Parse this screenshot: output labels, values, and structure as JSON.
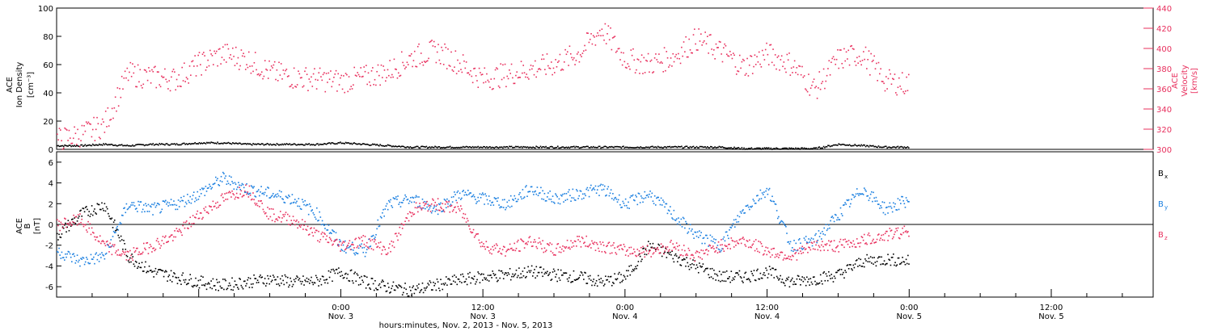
{
  "chart_data": [
    {
      "type": "scatter",
      "panel": "top",
      "ylabel_left": [
        "ACE",
        "Ion Density",
        "[cm⁻³]"
      ],
      "ylabel_right": [
        "ACE",
        "Velocity",
        "[km/s]"
      ],
      "ylim_left": [
        0,
        100
      ],
      "ylim_right": [
        300,
        440
      ],
      "yticks_left": [
        "0",
        "20",
        "40",
        "60",
        "80",
        "100"
      ],
      "yticks_right": [
        "300",
        "320",
        "340",
        "360",
        "380",
        "400",
        "420",
        "440"
      ],
      "x_hours_range": [
        0,
        72
      ],
      "series": [
        {
          "name": "Ion Density",
          "axis": "left",
          "color": "#000000",
          "x": [
            0,
            2,
            4,
            6,
            8,
            10,
            12,
            14,
            16,
            18,
            20,
            22,
            24,
            26,
            28,
            30,
            32,
            34,
            36,
            38,
            40,
            42,
            44,
            46,
            48,
            50,
            52,
            54,
            56,
            58,
            60,
            62,
            64,
            66,
            68,
            70,
            72
          ],
          "y": [
            3,
            3,
            4,
            3,
            4,
            4,
            5,
            5,
            4,
            4,
            4,
            4,
            5,
            4,
            3,
            2,
            2,
            2,
            2,
            2,
            2,
            2,
            2,
            2,
            2,
            2,
            2,
            2,
            2,
            1,
            1,
            1,
            1,
            4,
            3,
            2,
            2
          ]
        },
        {
          "name": "Velocity",
          "axis": "right",
          "color": "#e8305e",
          "x": [
            0,
            2,
            4,
            6,
            8,
            10,
            12,
            14,
            16,
            18,
            20,
            22,
            24,
            26,
            28,
            30,
            32,
            34,
            36,
            38,
            40,
            42,
            44,
            46,
            48,
            50,
            52,
            54,
            56,
            58,
            60,
            62,
            64,
            66,
            68,
            70,
            72
          ],
          "y": [
            310,
            315,
            325,
            375,
            372,
            370,
            385,
            395,
            390,
            377,
            372,
            370,
            368,
            372,
            378,
            392,
            398,
            386,
            370,
            375,
            380,
            385,
            395,
            420,
            390,
            385,
            392,
            410,
            398,
            382,
            395,
            385,
            360,
            390,
            395,
            368,
            365
          ]
        }
      ]
    },
    {
      "type": "scatter",
      "panel": "bottom",
      "ylabel_left": [
        "ACE",
        "B",
        "[nT]"
      ],
      "ylim": [
        -7,
        7
      ],
      "yticks": [
        "-6",
        "-4",
        "-2",
        "0",
        "2",
        "4",
        "6"
      ],
      "x_hours_range": [
        0,
        72
      ],
      "x_tick_labels": [
        {
          "time": "0:00",
          "date": "Nov. 3",
          "hour": 24
        },
        {
          "time": "12:00",
          "date": "Nov. 3",
          "hour": 36
        },
        {
          "time": "0:00",
          "date": "Nov. 4",
          "hour": 48
        },
        {
          "time": "12:00",
          "date": "Nov. 4",
          "hour": 60
        },
        {
          "time": "0:00",
          "date": "Nov. 5",
          "hour": 72
        },
        {
          "time": "12:00",
          "date": "Nov. 5",
          "hour": 84
        }
      ],
      "xlabel": "hours:minutes, Nov.  2, 2013 - Nov.  5, 2013",
      "legend": [
        {
          "label": "B",
          "sub": "x",
          "color": "#000000"
        },
        {
          "label": "B",
          "sub": "y",
          "color": "#1a7fe0"
        },
        {
          "label": "B",
          "sub": "z",
          "color": "#e8305e"
        }
      ],
      "series": [
        {
          "name": "Bx",
          "color": "#000000",
          "x": [
            0,
            2,
            4,
            6,
            8,
            10,
            12,
            14,
            16,
            18,
            20,
            22,
            24,
            26,
            28,
            30,
            32,
            34,
            36,
            38,
            40,
            42,
            44,
            46,
            48,
            50,
            52,
            54,
            56,
            58,
            60,
            62,
            64,
            66,
            68,
            70,
            72
          ],
          "y": [
            -1,
            1,
            2,
            -3,
            -4.5,
            -5,
            -5.5,
            -5.8,
            -5.5,
            -5.2,
            -5.5,
            -5.4,
            -4.5,
            -5.5,
            -6,
            -6.3,
            -5.8,
            -5.3,
            -5,
            -4.8,
            -4.5,
            -4.8,
            -5,
            -5.5,
            -5,
            -2,
            -3,
            -4,
            -5,
            -5,
            -4.5,
            -5.5,
            -5.2,
            -4.8,
            -3.5,
            -3.3,
            -3.5
          ]
        },
        {
          "name": "By",
          "color": "#1a7fe0",
          "x": [
            0,
            2,
            4,
            6,
            8,
            10,
            12,
            14,
            16,
            18,
            20,
            22,
            24,
            26,
            28,
            30,
            32,
            34,
            36,
            38,
            40,
            42,
            44,
            46,
            48,
            50,
            52,
            54,
            56,
            58,
            60,
            62,
            64,
            66,
            68,
            70,
            72
          ],
          "y": [
            -2.5,
            -3.5,
            -3,
            2,
            1.5,
            2,
            3,
            4.5,
            3.5,
            3,
            2.5,
            1,
            -2,
            -2.5,
            2,
            2.5,
            1.5,
            3,
            2.5,
            2,
            3.5,
            2.5,
            3,
            3.5,
            2,
            3,
            1,
            -1,
            -2,
            1.5,
            3.5,
            -2,
            -1.5,
            1,
            3.5,
            1.5,
            2.5
          ]
        },
        {
          "name": "Bz",
          "color": "#e8305e",
          "x": [
            0,
            2,
            4,
            6,
            8,
            10,
            12,
            14,
            16,
            18,
            20,
            22,
            24,
            26,
            28,
            30,
            32,
            34,
            36,
            38,
            40,
            42,
            44,
            46,
            48,
            50,
            52,
            54,
            56,
            58,
            60,
            62,
            64,
            66,
            68,
            70,
            72
          ],
          "y": [
            0,
            0.5,
            -2,
            -3,
            -2,
            -1,
            1,
            2.5,
            3.5,
            1,
            0.5,
            -1,
            -2,
            -1.5,
            -2.5,
            1.5,
            2,
            1.5,
            -2,
            -2.5,
            -1.5,
            -2.5,
            -1.5,
            -2,
            -2.5,
            -2.5,
            -2,
            -3,
            -2,
            -1.5,
            -2.5,
            -3,
            -2,
            -2,
            -1.5,
            -1,
            -0.5
          ]
        }
      ]
    }
  ]
}
